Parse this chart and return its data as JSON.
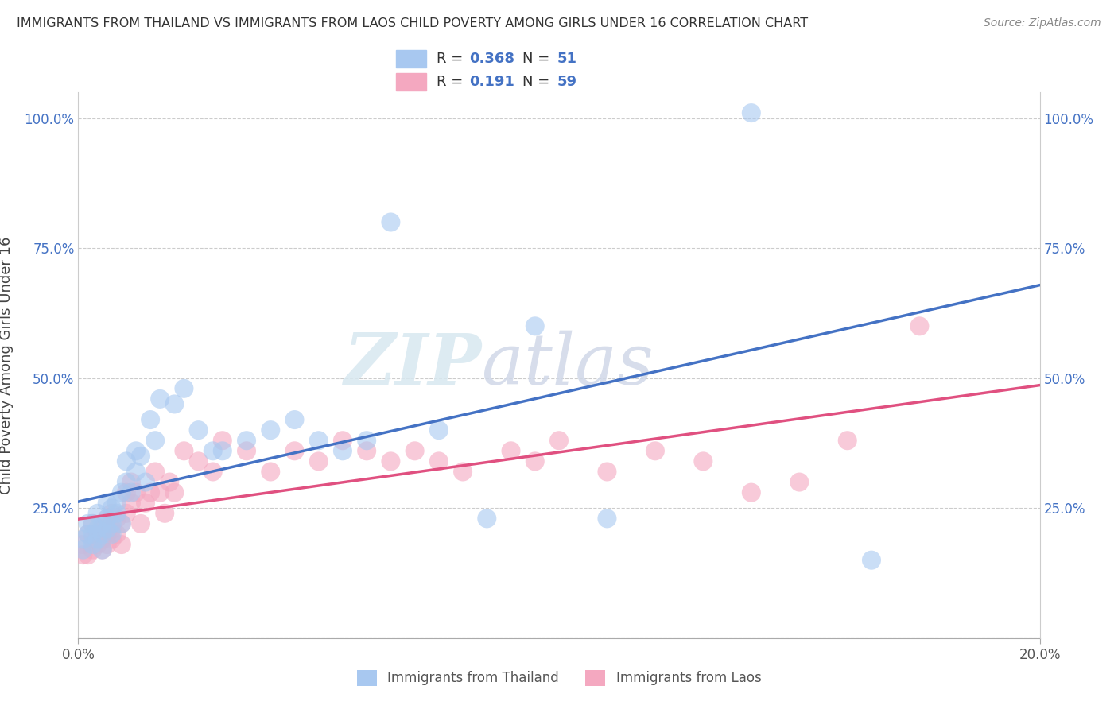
{
  "title": "IMMIGRANTS FROM THAILAND VS IMMIGRANTS FROM LAOS CHILD POVERTY AMONG GIRLS UNDER 16 CORRELATION CHART",
  "source": "Source: ZipAtlas.com",
  "ylabel": "Child Poverty Among Girls Under 16",
  "xlim": [
    0.0,
    0.2
  ],
  "ylim": [
    0.0,
    1.05
  ],
  "yticks": [
    0.25,
    0.5,
    0.75,
    1.0
  ],
  "ytick_labels": [
    "25.0%",
    "50.0%",
    "75.0%",
    "100.0%"
  ],
  "R_thailand": 0.368,
  "N_thailand": 51,
  "R_laos": 0.191,
  "N_laos": 59,
  "color_thailand": "#a8c8f0",
  "color_laos": "#f4a8c0",
  "line_color_thailand": "#4472c4",
  "line_color_laos": "#e05080",
  "watermark_zip": "ZIP",
  "watermark_atlas": "atlas",
  "thailand_x": [
    0.001,
    0.001,
    0.002,
    0.002,
    0.003,
    0.003,
    0.003,
    0.004,
    0.004,
    0.004,
    0.005,
    0.005,
    0.005,
    0.006,
    0.006,
    0.006,
    0.007,
    0.007,
    0.007,
    0.008,
    0.008,
    0.009,
    0.009,
    0.01,
    0.01,
    0.011,
    0.012,
    0.012,
    0.013,
    0.014,
    0.015,
    0.016,
    0.017,
    0.02,
    0.022,
    0.025,
    0.028,
    0.03,
    0.035,
    0.04,
    0.045,
    0.05,
    0.055,
    0.06,
    0.065,
    0.075,
    0.085,
    0.095,
    0.11,
    0.14,
    0.165
  ],
  "thailand_y": [
    0.17,
    0.19,
    0.2,
    0.22,
    0.18,
    0.2,
    0.22,
    0.19,
    0.21,
    0.24,
    0.2,
    0.22,
    0.17,
    0.21,
    0.23,
    0.26,
    0.2,
    0.22,
    0.25,
    0.24,
    0.26,
    0.28,
    0.22,
    0.3,
    0.34,
    0.28,
    0.32,
    0.36,
    0.35,
    0.3,
    0.42,
    0.38,
    0.46,
    0.45,
    0.48,
    0.4,
    0.36,
    0.36,
    0.38,
    0.4,
    0.42,
    0.38,
    0.36,
    0.38,
    0.8,
    0.4,
    0.23,
    0.6,
    0.23,
    1.01,
    0.15
  ],
  "laos_x": [
    0.001,
    0.001,
    0.002,
    0.002,
    0.003,
    0.003,
    0.003,
    0.004,
    0.004,
    0.005,
    0.005,
    0.005,
    0.006,
    0.006,
    0.006,
    0.007,
    0.007,
    0.007,
    0.008,
    0.008,
    0.009,
    0.009,
    0.01,
    0.01,
    0.011,
    0.011,
    0.012,
    0.013,
    0.014,
    0.015,
    0.016,
    0.017,
    0.018,
    0.019,
    0.02,
    0.022,
    0.025,
    0.028,
    0.03,
    0.035,
    0.04,
    0.045,
    0.05,
    0.055,
    0.06,
    0.065,
    0.07,
    0.075,
    0.08,
    0.09,
    0.095,
    0.1,
    0.11,
    0.12,
    0.13,
    0.14,
    0.15,
    0.16,
    0.175
  ],
  "laos_y": [
    0.16,
    0.18,
    0.16,
    0.2,
    0.17,
    0.19,
    0.22,
    0.18,
    0.2,
    0.17,
    0.19,
    0.21,
    0.18,
    0.2,
    0.23,
    0.19,
    0.21,
    0.24,
    0.2,
    0.23,
    0.18,
    0.22,
    0.24,
    0.28,
    0.3,
    0.26,
    0.28,
    0.22,
    0.26,
    0.28,
    0.32,
    0.28,
    0.24,
    0.3,
    0.28,
    0.36,
    0.34,
    0.32,
    0.38,
    0.36,
    0.32,
    0.36,
    0.34,
    0.38,
    0.36,
    0.34,
    0.36,
    0.34,
    0.32,
    0.36,
    0.34,
    0.38,
    0.32,
    0.36,
    0.34,
    0.28,
    0.3,
    0.38,
    0.6
  ]
}
